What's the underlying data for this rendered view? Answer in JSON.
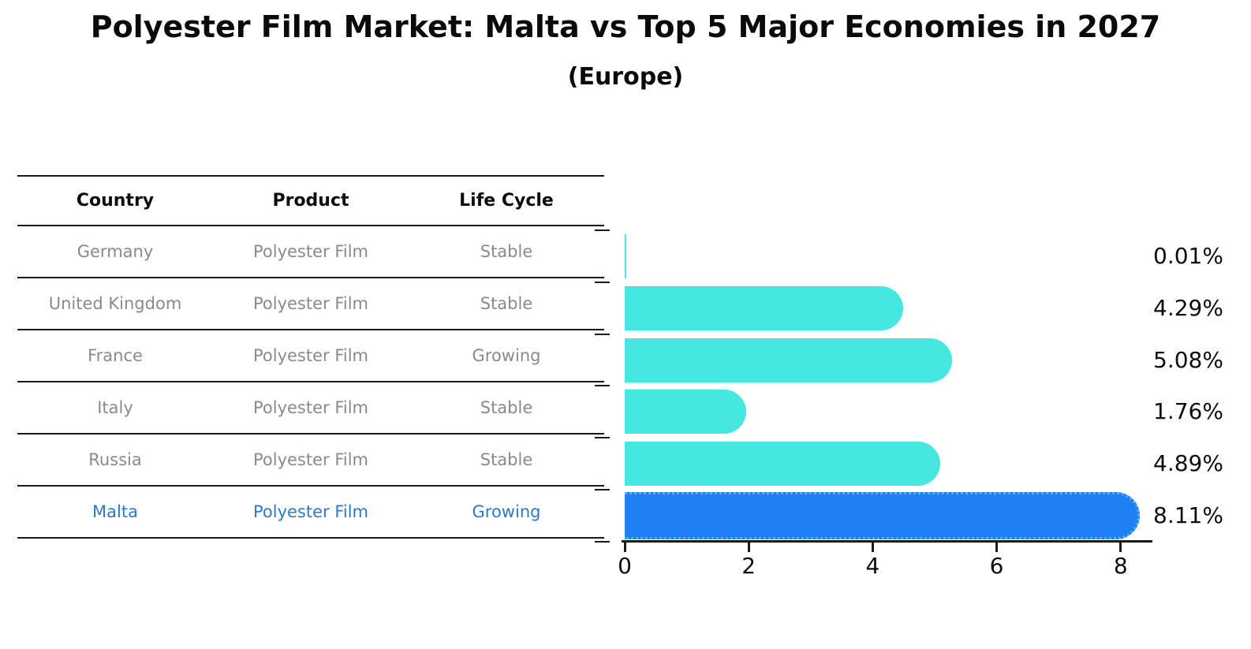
{
  "title": "Polyester Film Market: Malta vs Top 5 Major Economies in 2027",
  "subtitle": "(Europe)",
  "table": {
    "headers": [
      "Country",
      "Product",
      "Life Cycle"
    ],
    "rows": [
      {
        "country": "Germany",
        "product": "Polyester Film",
        "life_cycle": "Stable",
        "highlight": false
      },
      {
        "country": "United Kingdom",
        "product": "Polyester Film",
        "life_cycle": "Stable",
        "highlight": false
      },
      {
        "country": "France",
        "product": "Polyester Film",
        "life_cycle": "Growing",
        "highlight": false
      },
      {
        "country": "Italy",
        "product": "Polyester Film",
        "life_cycle": "Stable",
        "highlight": false
      },
      {
        "country": "Russia",
        "product": "Polyester Film",
        "life_cycle": "Stable",
        "highlight": false
      },
      {
        "country": "Malta",
        "product": "Polyester Film",
        "life_cycle": "Growing",
        "highlight": true
      }
    ]
  },
  "chart_data": {
    "type": "bar",
    "orientation": "horizontal",
    "title": "Polyester Film Market: Malta vs Top 5 Major Economies in 2027",
    "subtitle": "(Europe)",
    "categories": [
      "Germany",
      "United Kingdom",
      "France",
      "Italy",
      "Russia",
      "Malta"
    ],
    "values": [
      0.01,
      4.29,
      5.08,
      1.76,
      4.89,
      8.11
    ],
    "value_labels": [
      "0.01%",
      "4.29%",
      "5.08%",
      "1.76%",
      "4.89%",
      "8.11%"
    ],
    "x_ticks": [
      "0",
      "2",
      "4",
      "6",
      "8"
    ],
    "xlim": [
      0,
      8.5
    ],
    "grid": false,
    "legend": false,
    "highlight_index": 5
  },
  "colors": {
    "bar": "#45e7e0",
    "highlight_bar": "#1e80f2",
    "highlight_text": "#2b79c9",
    "row_text": "#8a8a8a",
    "text": "#0d0d0d",
    "axis": "#1a1a1a",
    "background": "#ffffff"
  }
}
